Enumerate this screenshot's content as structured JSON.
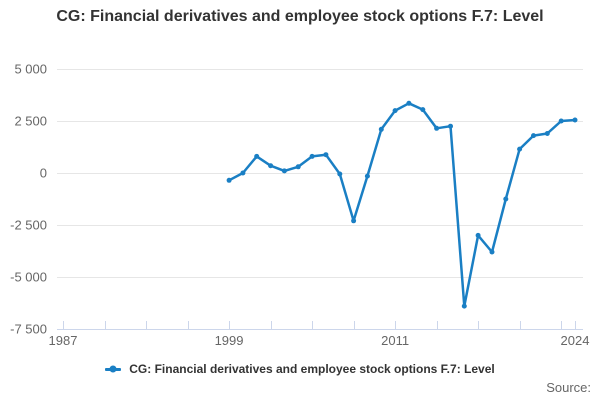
{
  "title": "CG: Financial derivatives and employee stock options F.7: Level",
  "legend": {
    "label": "CG: Financial derivatives and employee stock options F.7: Level"
  },
  "source_label": "Source:",
  "colors": {
    "line": "#1a7fc4",
    "grid": "#e6e6e6",
    "axis": "#ccd6eb",
    "tick_label": "#666666",
    "title_text": "#333333"
  },
  "chart_data": {
    "type": "line",
    "title": "CG: Financial derivatives and employee stock options F.7: Level",
    "series_name": "CG: Financial derivatives and employee stock options F.7: Level",
    "x": [
      1999,
      2000,
      2001,
      2002,
      2003,
      2004,
      2005,
      2006,
      2007,
      2008,
      2009,
      2010,
      2011,
      2012,
      2013,
      2014,
      2015,
      2016,
      2017,
      2018,
      2019,
      2020,
      2021,
      2022,
      2023,
      2024
    ],
    "values": [
      -350,
      0,
      800,
      350,
      100,
      300,
      800,
      880,
      -50,
      -2300,
      -150,
      2100,
      3000,
      3350,
      3050,
      2150,
      2250,
      -6400,
      -3000,
      -3800,
      -1250,
      1150,
      1800,
      1900,
      2500,
      2550
    ],
    "xlim": [
      1987,
      2024
    ],
    "ylim": [
      -7500,
      5000
    ],
    "grid": true,
    "legend_position": "bottom",
    "y_ticks": [
      5000,
      2500,
      0,
      -2500,
      -5000,
      -7500
    ],
    "y_tick_labels": [
      "5 000",
      "2 500",
      "0",
      "-2 500",
      "-5 000",
      "-7 500"
    ],
    "x_tick_years": [
      1987,
      1990,
      1993,
      1996,
      1999,
      2002,
      2005,
      2008,
      2011,
      2014,
      2017,
      2020,
      2023,
      2024
    ],
    "x_labeled_years": [
      1987,
      1999,
      2011,
      2024
    ],
    "x_tick_labels": [
      "1987",
      "1999",
      "2011",
      "2024"
    ]
  }
}
